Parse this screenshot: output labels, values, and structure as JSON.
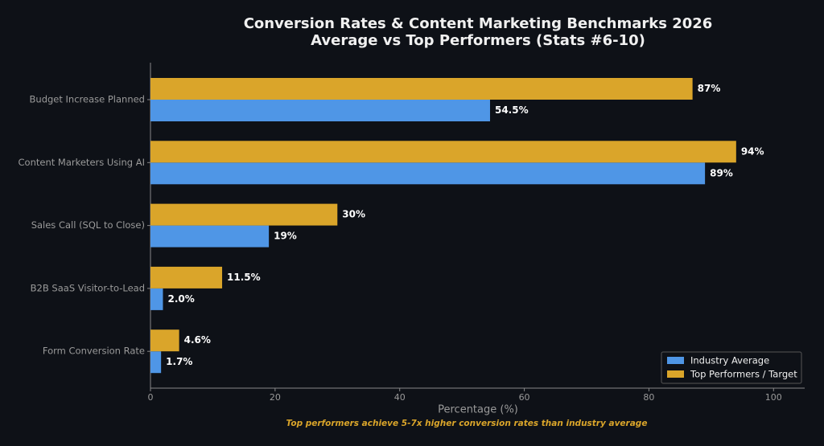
{
  "chart_data": {
    "type": "barh",
    "title": "Conversion Rates & Content Marketing Benchmarks 2026",
    "subtitle": "Average vs Top Performers (Stats #6-10)",
    "categories": [
      "Budget Increase Planned",
      "Content Marketers Using AI",
      "Sales Call (SQL to Close)",
      "B2B SaaS Visitor-to-Lead",
      "Form Conversion Rate"
    ],
    "series": [
      {
        "name": "Industry Average",
        "color": "#4f96e6",
        "values": [
          54.5,
          89,
          19,
          2.0,
          1.7
        ],
        "value_labels": [
          "54.5%",
          "89%",
          "19%",
          "2.0%",
          "1.7%"
        ]
      },
      {
        "name": "Top Performers / Target",
        "color": "#daa52a",
        "values": [
          87,
          94,
          30,
          11.5,
          4.6
        ],
        "value_labels": [
          "87%",
          "94%",
          "30%",
          "11.5%",
          "4.6%"
        ]
      }
    ],
    "xlabel": "Percentage (%)",
    "xlim": [
      0,
      105
    ],
    "xticks": [
      0,
      20,
      40,
      60,
      80,
      100
    ],
    "legend": "lower right",
    "footnote": "Top performers achieve 5-7x higher conversion rates than industry average"
  }
}
